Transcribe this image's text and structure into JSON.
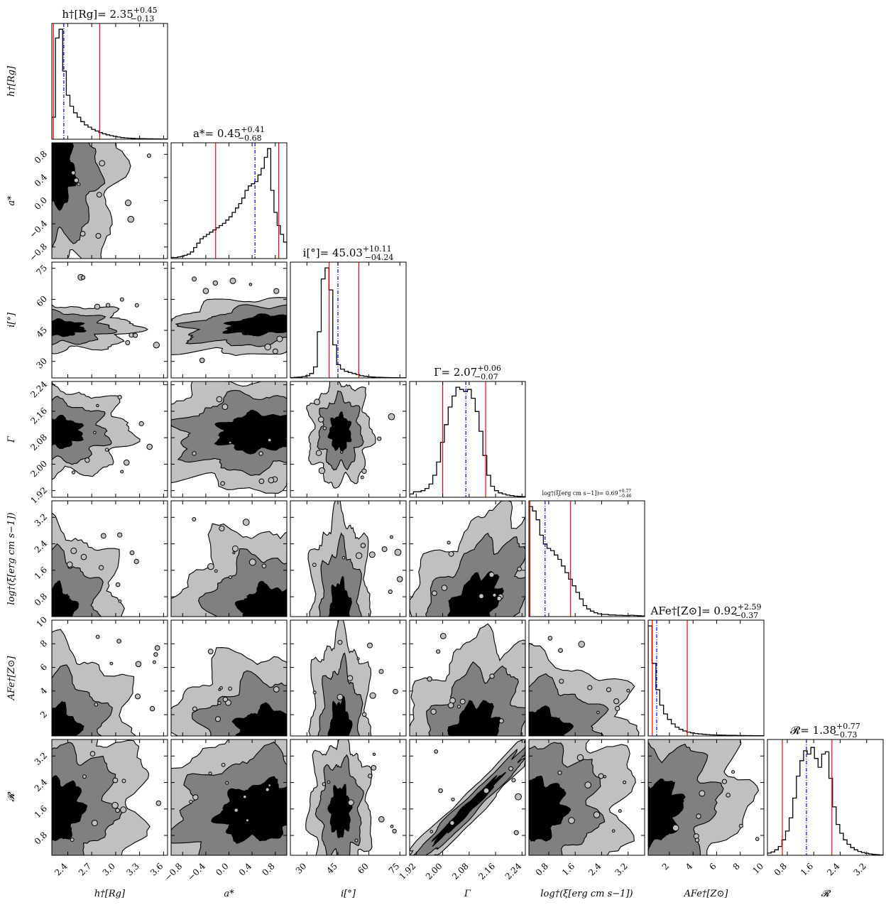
{
  "chart_data": {
    "type": "corner",
    "params": [
      {
        "key": "h",
        "label": "h†[Rg]",
        "title": "h†[Rg]= 2.35",
        "title_plus": "+0.45",
        "title_minus": "−0.13",
        "range": [
          2.2,
          3.65
        ],
        "ticks": [
          "2.4",
          "2.7",
          "3.0",
          "3.3",
          "3.6"
        ],
        "tick_values": [
          2.4,
          2.7,
          3.0,
          3.3,
          3.6
        ],
        "median": 2.35,
        "lo": 2.22,
        "hi": 2.8
      },
      {
        "key": "a",
        "label": "a*",
        "title": "a*= 0.45",
        "title_plus": "+0.41",
        "title_minus": "−0.68",
        "range": [
          -1.0,
          1.0
        ],
        "ticks": [
          "−0.8",
          "−0.4",
          "0.0",
          "0.4",
          "0.8"
        ],
        "tick_values": [
          -0.8,
          -0.4,
          0.0,
          0.4,
          0.8
        ],
        "median": 0.45,
        "lo": -0.23,
        "hi": 0.86
      },
      {
        "key": "i",
        "label": "i[°]",
        "title": "i[°]= 45.03",
        "title_plus": "+10.11",
        "title_minus": "−04.24",
        "range": [
          22,
          78
        ],
        "ticks": [
          "30",
          "45",
          "60",
          "75"
        ],
        "tick_values": [
          30,
          45,
          60,
          75
        ],
        "median": 45.03,
        "lo": 40.79,
        "hi": 55.14
      },
      {
        "key": "G",
        "label": "Γ",
        "title": "Γ= 2.07",
        "title_plus": "+0.06",
        "title_minus": "−0.07",
        "range": [
          1.9,
          2.25
        ],
        "ticks": [
          "1.92",
          "2.00",
          "2.08",
          "2.16",
          "2.24"
        ],
        "tick_values": [
          1.92,
          2.0,
          2.08,
          2.16,
          2.24
        ],
        "median": 2.07,
        "lo": 2.0,
        "hi": 2.13
      },
      {
        "key": "xi",
        "label": "log†(ξ[erg cm s−1])",
        "title": "log†(ξ[erg cm s−1])= 0.69",
        "title_plus": "+0.77",
        "title_minus": "−0.46",
        "small_title": true,
        "range": [
          0.2,
          3.7
        ],
        "ticks": [
          "0.8",
          "1.6",
          "2.4",
          "3.2"
        ],
        "tick_values": [
          0.8,
          1.6,
          2.4,
          3.2
        ],
        "median": 0.69,
        "lo": 0.23,
        "hi": 1.46
      },
      {
        "key": "Fe",
        "label": "AFe†[Z⊙]",
        "title": "AFe†[Z⊙]= 0.92",
        "title_plus": "+2.59",
        "title_minus": "−0.37",
        "range": [
          0.2,
          10.0
        ],
        "ticks": [
          "2",
          "4",
          "6",
          "8",
          "10"
        ],
        "tick_values": [
          2,
          4,
          6,
          8,
          10
        ],
        "median": 0.92,
        "lo": 0.55,
        "hi": 3.51
      },
      {
        "key": "R",
        "label": "𝓡",
        "title": "𝓡= 1.38",
        "title_plus": "+0.77",
        "title_minus": "−0.73",
        "range": [
          0.2,
          3.7
        ],
        "ticks": [
          "0.8",
          "1.6",
          "2.4",
          "3.2"
        ],
        "tick_values": [
          0.8,
          1.6,
          2.4,
          3.2
        ],
        "median": 1.38,
        "lo": 0.65,
        "hi": 2.15
      }
    ],
    "histograms": {
      "h": [
        0.2,
        0.92,
        1.0,
        0.62,
        0.4,
        0.3,
        0.24,
        0.2,
        0.16,
        0.13,
        0.11,
        0.09,
        0.075,
        0.06,
        0.05,
        0.04,
        0.033,
        0.026,
        0.02,
        0.015,
        0.012,
        0.01,
        0.008,
        0.006,
        0.006,
        0.005,
        0.004,
        0.004,
        0.003,
        0.003,
        0.002,
        0.002
      ],
      "a": [
        0.01,
        0.01,
        0.015,
        0.02,
        0.03,
        0.04,
        0.06,
        0.1,
        0.14,
        0.18,
        0.2,
        0.22,
        0.24,
        0.26,
        0.28,
        0.3,
        0.32,
        0.35,
        0.38,
        0.42,
        0.46,
        0.5,
        0.55,
        0.62,
        0.66,
        0.68,
        0.7,
        0.76,
        0.82,
        0.92,
        1.0,
        0.62,
        0.42,
        0.3,
        0.22,
        0.15
      ],
      "i": [
        0.003,
        0.005,
        0.008,
        0.012,
        0.02,
        0.04,
        0.1,
        0.42,
        0.9,
        1.0,
        0.8,
        0.3,
        0.12,
        0.08,
        0.06,
        0.05,
        0.04,
        0.03,
        0.02,
        0.015,
        0.01,
        0.008,
        0.006,
        0.005,
        0.004,
        0.003,
        0.002,
        0.002,
        0.001,
        0.001
      ],
      "G": [
        0.03,
        0.05,
        0.05,
        0.06,
        0.08,
        0.12,
        0.2,
        0.32,
        0.5,
        0.66,
        0.82,
        0.92,
        1.0,
        0.98,
        0.96,
        0.98,
        0.9,
        0.78,
        0.6,
        0.38,
        0.2,
        0.1,
        0.06,
        0.04,
        0.03,
        0.02,
        0.015,
        0.01,
        0.008,
        0.006
      ],
      "xi": [
        1.0,
        0.96,
        0.88,
        0.74,
        0.66,
        0.62,
        0.6,
        0.56,
        0.52,
        0.46,
        0.4,
        0.34,
        0.28,
        0.22,
        0.16,
        0.1,
        0.07,
        0.05,
        0.035,
        0.025,
        0.02,
        0.02,
        0.015,
        0.015,
        0.012,
        0.012,
        0.01,
        0.01,
        0.012,
        0.01,
        0.008,
        0.006
      ],
      "Fe": [
        1.0,
        0.66,
        0.42,
        0.28,
        0.2,
        0.15,
        0.11,
        0.08,
        0.06,
        0.045,
        0.035,
        0.028,
        0.022,
        0.018,
        0.015,
        0.012,
        0.01,
        0.009,
        0.008,
        0.007,
        0.006,
        0.005,
        0.005,
        0.004,
        0.004,
        0.003,
        0.003,
        0.002,
        0.002,
        0.002
      ],
      "R": [
        0.02,
        0.03,
        0.05,
        0.08,
        0.14,
        0.22,
        0.34,
        0.52,
        0.72,
        0.86,
        0.95,
        0.92,
        0.98,
        0.88,
        0.8,
        0.92,
        0.94,
        0.7,
        0.44,
        0.28,
        0.2,
        0.14,
        0.1,
        0.07,
        0.05,
        0.035,
        0.025,
        0.018,
        0.012,
        0.008,
        0.005,
        0.003
      ]
    },
    "contours": {
      "a|h": {
        "cx": 0.0,
        "cy": 0.75,
        "sx": 0.26,
        "sy": 0.42,
        "rho": 0.0
      },
      "i|h": {
        "cx": 0.05,
        "cy": 0.43,
        "sx": 0.3,
        "sy": 0.09,
        "rho": 0.0
      },
      "i|a": {
        "cx": 0.82,
        "cy": 0.46,
        "sx": 0.36,
        "sy": 0.09,
        "rho": 0.35
      },
      "G|h": {
        "cx": 0.05,
        "cy": 0.56,
        "sx": 0.28,
        "sy": 0.17,
        "rho": 0.0
      },
      "G|a": {
        "cx": 0.75,
        "cy": 0.56,
        "sx": 0.36,
        "sy": 0.17,
        "rho": 0.1
      },
      "G|i": {
        "cx": 0.43,
        "cy": 0.56,
        "sx": 0.12,
        "sy": 0.2,
        "rho": 0.0
      },
      "xi|h": {
        "cx": 0.0,
        "cy": 0.0,
        "sx": 0.28,
        "sy": 0.35,
        "rho": 0.0
      },
      "xi|a": {
        "cx": 0.85,
        "cy": 0.0,
        "sx": 0.36,
        "sy": 0.35,
        "rho": 0.0
      },
      "xi|i": {
        "cx": 0.43,
        "cy": 0.0,
        "sx": 0.12,
        "sy": 0.4,
        "rho": 0.0
      },
      "xi|G": {
        "cx": 0.55,
        "cy": 0.08,
        "sx": 0.24,
        "sy": 0.3,
        "rho": -0.5
      },
      "Fe|h": {
        "cx": 0.0,
        "cy": 0.0,
        "sx": 0.32,
        "sy": 0.35,
        "rho": 0.0
      },
      "Fe|a": {
        "cx": 0.85,
        "cy": 0.0,
        "sx": 0.4,
        "sy": 0.32,
        "rho": 0.0
      },
      "Fe|i": {
        "cx": 0.43,
        "cy": 0.0,
        "sx": 0.12,
        "sy": 0.4,
        "rho": 0.0
      },
      "Fe|G": {
        "cx": 0.55,
        "cy": 0.0,
        "sx": 0.22,
        "sy": 0.3,
        "rho": -0.3
      },
      "Fe|xi": {
        "cx": 0.05,
        "cy": 0.0,
        "sx": 0.4,
        "sy": 0.3,
        "rho": 0.0
      },
      "R|h": {
        "cx": 0.0,
        "cy": 0.38,
        "sx": 0.28,
        "sy": 0.28,
        "rho": -0.2
      },
      "R|a": {
        "cx": 0.78,
        "cy": 0.38,
        "sx": 0.38,
        "sy": 0.26,
        "rho": 0.2
      },
      "R|i": {
        "cx": 0.43,
        "cy": 0.38,
        "sx": 0.12,
        "sy": 0.28,
        "rho": 0.0
      },
      "R|G": {
        "cx": 0.5,
        "cy": 0.4,
        "sx": 0.3,
        "sy": 0.3,
        "rho": 0.985
      },
      "R|xi": {
        "cx": 0.03,
        "cy": 0.38,
        "sx": 0.3,
        "sy": 0.28,
        "rho": -0.2
      },
      "R|Fe": {
        "cx": 0.0,
        "cy": 0.35,
        "sx": 0.3,
        "sy": 0.3,
        "rho": -0.3
      }
    },
    "colors": {
      "hist": "#000000",
      "median": "#0000ff",
      "quantile": "#ff0000",
      "level1": "#000000",
      "level2": "#808080",
      "level3": "#c0c0c0"
    }
  }
}
